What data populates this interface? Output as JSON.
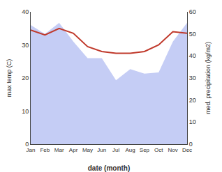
{
  "chart_data": {
    "type": "line",
    "xlabel": "date (month)",
    "ylabel": "max temp (C)",
    "y2label": "med. precipitation (kg/m2)",
    "categories": [
      "Jan",
      "Feb",
      "Mar",
      "Apr",
      "May",
      "Jun",
      "Jul",
      "Aug",
      "Sep",
      "Oct",
      "Nov",
      "Dec"
    ],
    "series": [
      {
        "type": "area",
        "axis": "y2",
        "color": "#c5cdf5",
        "values": [
          54.0,
          50.0,
          55.0,
          46.5,
          39.0,
          39.0,
          29.0,
          34.0,
          32.0,
          32.5,
          46.5,
          55.0
        ]
      },
      {
        "type": "line",
        "color": "#c0392b",
        "values": [
          34.5,
          33.0,
          35.0,
          33.5,
          29.5,
          28.0,
          27.5,
          27.5,
          28.0,
          30.0,
          34.0,
          33.5
        ]
      }
    ],
    "ylim": [
      0,
      40
    ],
    "yticks": [
      0,
      10,
      20,
      30,
      40
    ],
    "y2lim": [
      0,
      60
    ],
    "y2ticks": [
      0,
      10,
      20,
      30,
      40,
      50,
      60
    ],
    "grid": false
  }
}
